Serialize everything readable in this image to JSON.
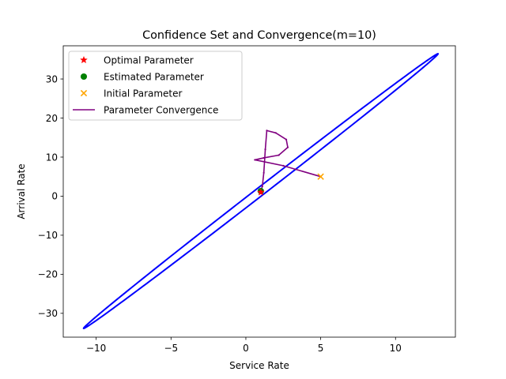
{
  "chart_data": {
    "type": "scatter",
    "title": "Confidence Set and Convergence(m=10)",
    "xlabel": "Service Rate",
    "ylabel": "Arrival Rate",
    "xlim": [
      -12.2,
      14.0
    ],
    "ylim": [
      -36.1,
      38.5
    ],
    "xticks": [
      -10,
      -5,
      0,
      5,
      10
    ],
    "yticks": [
      -30,
      -20,
      -10,
      0,
      10,
      20,
      30
    ],
    "xtick_labels": [
      "−10",
      "−5",
      "0",
      "5",
      "10"
    ],
    "ytick_labels": [
      "−30",
      "−20",
      "−10",
      "0",
      "10",
      "20",
      "30"
    ],
    "grid": false,
    "legend_position": "upper left",
    "series": [
      {
        "name": "Optimal Parameter",
        "kind": "marker",
        "marker": "star",
        "color": "#ff0000",
        "x": [
          1.0
        ],
        "y": [
          1.0
        ]
      },
      {
        "name": "Estimated Parameter",
        "kind": "marker",
        "marker": "circle",
        "color": "#008000",
        "x": [
          1.0
        ],
        "y": [
          1.3
        ]
      },
      {
        "name": "Initial Parameter",
        "kind": "marker",
        "marker": "x",
        "color": "#ffa500",
        "x": [
          5.0
        ],
        "y": [
          5.0
        ]
      },
      {
        "name": "Parameter Convergence",
        "kind": "line",
        "color": "#800080",
        "x": [
          5.0,
          2.5,
          0.6,
          1.2,
          2.2,
          2.8,
          2.7,
          2.0,
          1.4,
          1.3,
          1.2,
          1.1,
          1.0
        ],
        "y": [
          5.0,
          7.8,
          9.3,
          9.8,
          10.5,
          12.5,
          14.5,
          16.2,
          16.8,
          12.0,
          6.0,
          2.5,
          1.3
        ]
      }
    ],
    "confidence_set": {
      "shape": "ellipse",
      "color": "#0000ff",
      "center": [
        1.0,
        1.3
      ],
      "semi_axes": [
        37.1,
        0.43
      ],
      "angle_deg": 71.4
    }
  }
}
